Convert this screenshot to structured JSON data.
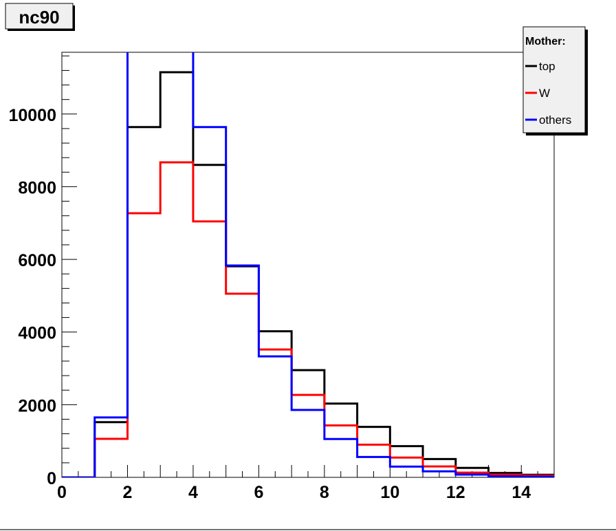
{
  "chart_data": {
    "type": "histogram-step",
    "title": "nc90",
    "xlabel": "",
    "ylabel": "",
    "xlim": [
      0,
      15
    ],
    "ylim": [
      0,
      11700
    ],
    "bin_edges": [
      0,
      1,
      2,
      3,
      4,
      5,
      6,
      7,
      8,
      9,
      10,
      11,
      12,
      13,
      14,
      15
    ],
    "x_ticks": [
      "0",
      "2",
      "4",
      "6",
      "8",
      "10",
      "12",
      "14"
    ],
    "y_ticks": [
      "0",
      "2000",
      "4000",
      "6000",
      "8000",
      "10000"
    ],
    "grid": false,
    "legend": {
      "title": "Mother:",
      "position": "top-right"
    },
    "series": [
      {
        "name": "top",
        "color": "#000000",
        "values": [
          0,
          1520,
          9640,
          11150,
          8600,
          5810,
          4020,
          2950,
          2030,
          1390,
          860,
          505,
          260,
          120,
          70
        ]
      },
      {
        "name": "W",
        "color": "#ff0000",
        "values": [
          0,
          1060,
          7270,
          8670,
          7045,
          5055,
          3520,
          2270,
          1430,
          900,
          545,
          300,
          130,
          75,
          50
        ]
      },
      {
        "name": "others",
        "color": "#0000ff",
        "values": [
          0,
          1650,
          13000,
          13000,
          9640,
          5830,
          3330,
          1855,
          1055,
          560,
          295,
          165,
          75,
          25,
          20
        ]
      }
    ],
    "notes_offscale": "others bins 2-3 and 3-4 exceed the visible y range"
  }
}
